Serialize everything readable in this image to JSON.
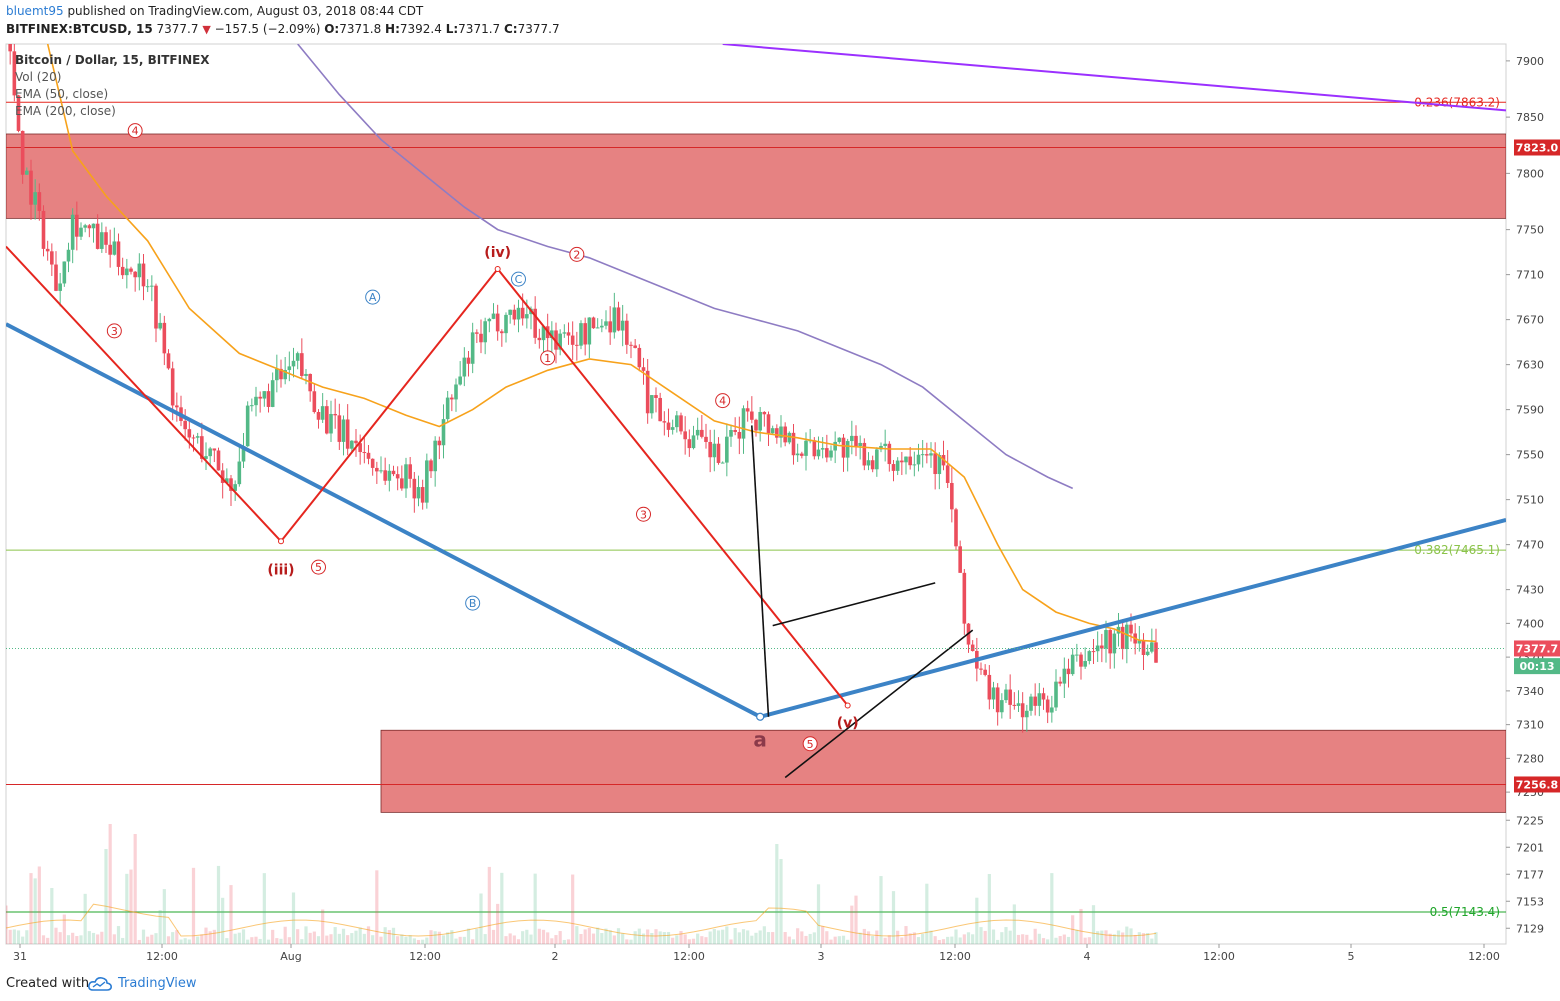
{
  "header": {
    "author": "bluemt95",
    "published_text": "published on TradingView.com, August 03, 2018 08:44 CDT",
    "symbol": "BITFINEX:BTCUSD, 15",
    "last": "7377.7",
    "change": "−157.5 (−2.09%)",
    "open": "7371.8",
    "high": "7392.4",
    "low": "7371.7",
    "close": "7377.7",
    "o_label": "O:",
    "h_label": "H:",
    "l_label": "L:",
    "c_label": "C:"
  },
  "legend": {
    "title": "Bitcoin / Dollar, 15, BITFINEX",
    "vol": "Vol (20)",
    "ema50": "EMA (50, close)",
    "ema200": "EMA (200, close)"
  },
  "footer": {
    "created": "Created with",
    "brand": "TradingView"
  },
  "colors": {
    "bull": "#53b987",
    "bear": "#eb4d5c",
    "ema50": "#f7a21b",
    "ema200": "#8e7cc3",
    "trend_blue": "#3c83c6",
    "zigzag": "#e5261f",
    "zone": "#e06666",
    "purple_line": "#9b30ff",
    "fib_green": "#8bc34a",
    "price_tag": "#eb4d5c"
  },
  "chart_data": {
    "type": "candlestick",
    "title": "Bitcoin / Dollar, 15, BITFINEX",
    "y_axis": {
      "min": 7115,
      "max": 7915,
      "ticks": [
        7900,
        7850,
        7800,
        7750,
        7710,
        7670,
        7630,
        7590,
        7550,
        7510,
        7470,
        7430,
        7400,
        7370,
        7340,
        7310,
        7280,
        7250,
        7225,
        7201,
        7177,
        7153,
        7129
      ]
    },
    "x_axis": {
      "ticks": [
        "31",
        "12:00",
        "Aug",
        "12:00",
        "2",
        "12:00",
        "3",
        "12:00",
        "4",
        "12:00",
        "5",
        "12:00"
      ],
      "bar_start": 0,
      "bar_end": 360
    },
    "price_path": [
      [
        0,
        7935
      ],
      [
        4,
        7810
      ],
      [
        8,
        7760
      ],
      [
        12,
        7700
      ],
      [
        16,
        7760
      ],
      [
        22,
        7740
      ],
      [
        28,
        7720
      ],
      [
        34,
        7710
      ],
      [
        38,
        7640
      ],
      [
        42,
        7570
      ],
      [
        46,
        7560
      ],
      [
        50,
        7545
      ],
      [
        54,
        7520
      ],
      [
        58,
        7580
      ],
      [
        64,
        7610
      ],
      [
        70,
        7630
      ],
      [
        74,
        7600
      ],
      [
        78,
        7575
      ],
      [
        84,
        7560
      ],
      [
        90,
        7535
      ],
      [
        96,
        7530
      ],
      [
        100,
        7520
      ],
      [
        106,
        7590
      ],
      [
        112,
        7645
      ],
      [
        118,
        7670
      ],
      [
        124,
        7680
      ],
      [
        128,
        7660
      ],
      [
        134,
        7650
      ],
      [
        140,
        7660
      ],
      [
        146,
        7675
      ],
      [
        150,
        7650
      ],
      [
        154,
        7600
      ],
      [
        160,
        7580
      ],
      [
        166,
        7560
      ],
      [
        172,
        7545
      ],
      [
        178,
        7590
      ],
      [
        186,
        7570
      ],
      [
        192,
        7555
      ],
      [
        198,
        7560
      ],
      [
        206,
        7550
      ],
      [
        214,
        7545
      ],
      [
        220,
        7560
      ],
      [
        226,
        7530
      ],
      [
        230,
        7400
      ],
      [
        234,
        7350
      ],
      [
        238,
        7330
      ],
      [
        244,
        7325
      ],
      [
        250,
        7330
      ],
      [
        256,
        7360
      ],
      [
        262,
        7380
      ],
      [
        270,
        7390
      ],
      [
        276,
        7378
      ]
    ],
    "ema50_path": [
      [
        10,
        7915
      ],
      [
        16,
        7820
      ],
      [
        24,
        7780
      ],
      [
        34,
        7740
      ],
      [
        44,
        7680
      ],
      [
        56,
        7640
      ],
      [
        66,
        7625
      ],
      [
        76,
        7610
      ],
      [
        86,
        7600
      ],
      [
        96,
        7585
      ],
      [
        104,
        7575
      ],
      [
        112,
        7590
      ],
      [
        120,
        7610
      ],
      [
        130,
        7625
      ],
      [
        140,
        7635
      ],
      [
        150,
        7630
      ],
      [
        160,
        7605
      ],
      [
        170,
        7580
      ],
      [
        180,
        7570
      ],
      [
        190,
        7565
      ],
      [
        200,
        7558
      ],
      [
        212,
        7555
      ],
      [
        222,
        7555
      ],
      [
        230,
        7530
      ],
      [
        238,
        7470
      ],
      [
        244,
        7430
      ],
      [
        252,
        7410
      ],
      [
        260,
        7400
      ],
      [
        266,
        7395
      ],
      [
        272,
        7385
      ],
      [
        276,
        7384
      ]
    ],
    "ema200_path": [
      [
        70,
        7915
      ],
      [
        80,
        7870
      ],
      [
        90,
        7830
      ],
      [
        100,
        7800
      ],
      [
        110,
        7770
      ],
      [
        118,
        7750
      ],
      [
        130,
        7735
      ],
      [
        140,
        7725
      ],
      [
        150,
        7710
      ],
      [
        160,
        7695
      ],
      [
        170,
        7680
      ],
      [
        180,
        7670
      ],
      [
        190,
        7660
      ],
      [
        200,
        7645
      ],
      [
        210,
        7630
      ],
      [
        220,
        7610
      ],
      [
        230,
        7580
      ],
      [
        240,
        7550
      ],
      [
        250,
        7530
      ],
      [
        256,
        7520
      ]
    ],
    "zones": [
      {
        "label": "7823.0",
        "top": 7835,
        "bottom": 7760,
        "from": 0
      },
      {
        "label": "7256.8",
        "top": 7305,
        "bottom": 7232,
        "from": 90
      }
    ],
    "fib_levels": [
      {
        "label": "0.236(7863.2)",
        "value": 7863.2,
        "color": "#e5261f"
      },
      {
        "label": "0.382(7465.1)",
        "value": 7465.1,
        "color": "#8bc34a"
      },
      {
        "label": "0.5(7143.4)",
        "value": 7143.4,
        "color": "#1fa52a"
      }
    ],
    "price_tags": [
      {
        "label": "7823.0",
        "value": 7823.0,
        "color": "#d62728"
      },
      {
        "label": "7377.7",
        "value": 7377.7,
        "color": "#eb4d5c"
      },
      {
        "label": "00:13",
        "value": 7362,
        "color": "#53b987"
      },
      {
        "label": "7256.8",
        "value": 7256.8,
        "color": "#d62728"
      }
    ],
    "wave_labels": [
      {
        "text": "4",
        "x": 31,
        "y": 7838,
        "circled": true,
        "color": "#d62728"
      },
      {
        "text": "3",
        "x": 26,
        "y": 7660,
        "circled": true,
        "color": "#d62728"
      },
      {
        "text": "(iii)",
        "x": 66,
        "y": 7448,
        "circled": false,
        "color": "#b71c1c"
      },
      {
        "text": "5",
        "x": 75,
        "y": 7450,
        "circled": true,
        "color": "#d62728"
      },
      {
        "text": "A",
        "x": 88,
        "y": 7690,
        "circled": true,
        "color": "#3c83c6"
      },
      {
        "text": "B",
        "x": 112,
        "y": 7418,
        "circled": true,
        "color": "#3c83c6"
      },
      {
        "text": "(iv)",
        "x": 118,
        "y": 7730,
        "circled": false,
        "color": "#b71c1c"
      },
      {
        "text": "C",
        "x": 123,
        "y": 7706,
        "circled": true,
        "color": "#3c83c6"
      },
      {
        "text": "2",
        "x": 137,
        "y": 7728,
        "circled": true,
        "color": "#d62728"
      },
      {
        "text": "1",
        "x": 130,
        "y": 7636,
        "circled": true,
        "color": "#d62728"
      },
      {
        "text": "4",
        "x": 172,
        "y": 7598,
        "circled": true,
        "color": "#d62728"
      },
      {
        "text": "3",
        "x": 153,
        "y": 7497,
        "circled": true,
        "color": "#d62728"
      },
      {
        "text": "a",
        "x": 181,
        "y": 7295,
        "circled": false,
        "color": "#8b3a4a"
      },
      {
        "text": "5",
        "x": 193,
        "y": 7293,
        "circled": true,
        "color": "#d62728"
      },
      {
        "text": "(v)",
        "x": 202,
        "y": 7312,
        "circled": false,
        "color": "#b71c1c"
      }
    ],
    "trend_lines": [
      {
        "name": "blue-support",
        "points": [
          [
            0,
            7666
          ],
          [
            181,
            7317
          ],
          [
            360,
            7492
          ]
        ],
        "color": "#3c83c6"
      },
      {
        "name": "purple-resistance",
        "points": [
          [
            172,
            7915
          ],
          [
            360,
            7856
          ]
        ],
        "color": "#9b30ff"
      },
      {
        "name": "zigzag",
        "points": [
          [
            0,
            7735
          ],
          [
            66,
            7473
          ],
          [
            118,
            7715
          ],
          [
            202,
            7327
          ]
        ],
        "color": "#e5261f"
      },
      {
        "name": "wedge-top",
        "points": [
          [
            184,
            7398
          ],
          [
            223,
            7436
          ]
        ],
        "color": "#111111"
      },
      {
        "name": "wedge-bottom",
        "points": [
          [
            187,
            7263
          ],
          [
            232,
            7394
          ]
        ],
        "color": "#111111"
      },
      {
        "name": "drop-line",
        "points": [
          [
            179,
            7576
          ],
          [
            183,
            7317
          ]
        ],
        "color": "#111111"
      }
    ]
  }
}
